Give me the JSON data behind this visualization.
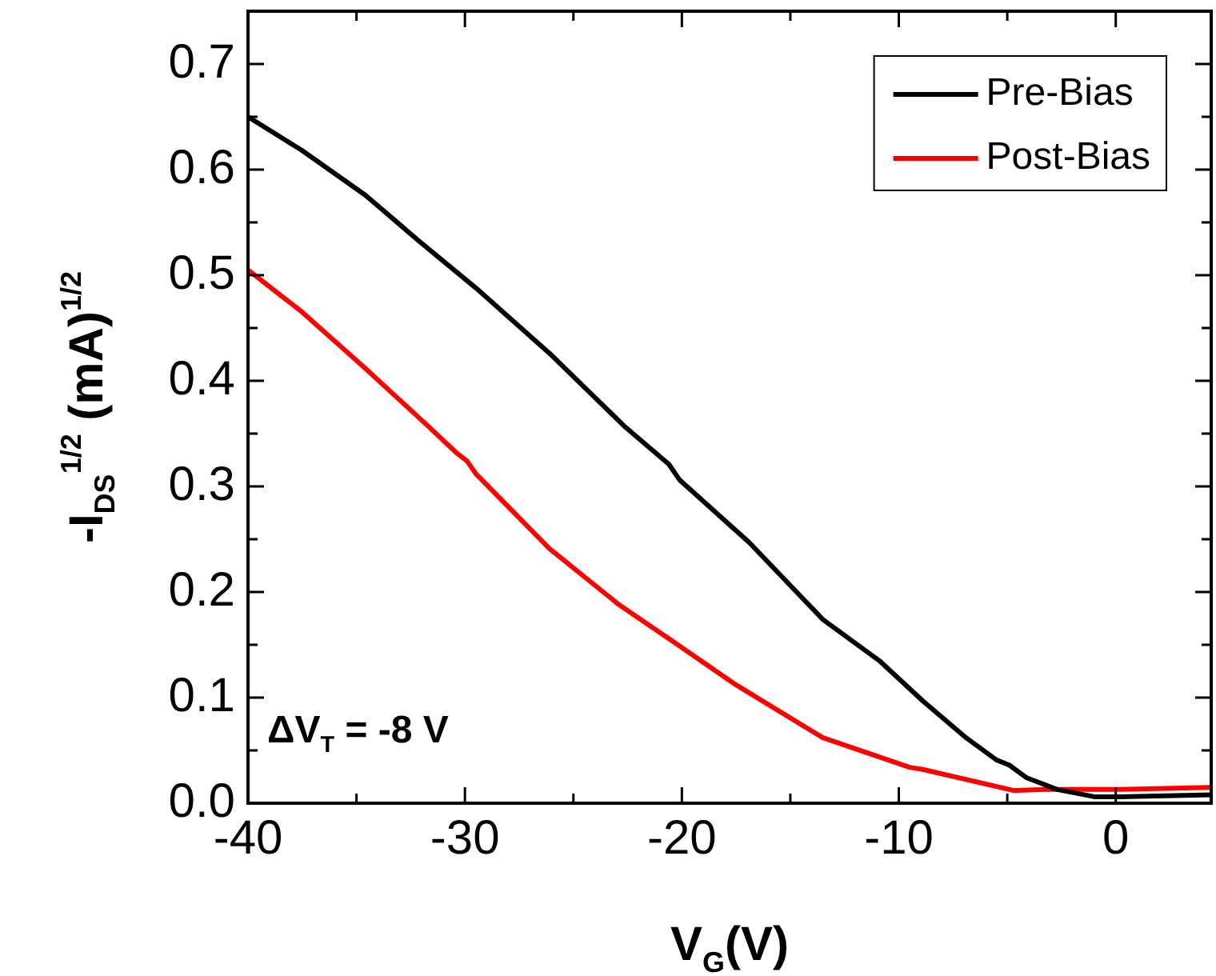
{
  "chart_data": {
    "type": "line",
    "xlabel": "V$_{G}$(V)",
    "ylabel": "-I$_{DS}$$^{1/2}$ (mA)$^{1/2}$",
    "annotations": [
      "ΔV$_{T}$ = -8 V"
    ],
    "xlim": [
      -40,
      4.4
    ],
    "ylim": [
      0,
      0.75
    ],
    "xticks": [
      -40,
      {
        "value": -35,
        "label": null
      },
      -30,
      {
        "value": -25,
        "label": null
      },
      -20,
      {
        "value": -15,
        "label": null
      },
      -10,
      {
        "value": -5,
        "label": null
      },
      0
    ],
    "yticks": [
      {
        "value": 0,
        "label": "0.0"
      },
      {
        "value": 0.05,
        "label": null
      },
      0.1,
      {
        "value": 0.15,
        "label": null
      },
      0.2,
      {
        "value": 0.25,
        "label": null
      },
      0.3,
      {
        "value": 0.35,
        "label": null
      },
      0.4,
      {
        "value": 0.45,
        "label": null
      },
      0.5,
      {
        "value": 0.55,
        "label": null
      },
      0.6,
      {
        "value": 0.65,
        "label": null
      },
      0.7
    ],
    "legend": "top right",
    "series": [
      {
        "name": "Pre-Bias",
        "color": "#000000",
        "x": [
          -40,
          -37.5,
          -34.6,
          -32.1,
          -29.5,
          -26.1,
          -22.6,
          -20.6,
          -20.1,
          -16.9,
          -13.5,
          -10.9,
          -8.9,
          -6.9,
          -5.5,
          -4.9,
          -4.1,
          -2.7,
          -0.95,
          0.2,
          4.4
        ],
        "values": [
          0.65,
          0.618,
          0.576,
          0.532,
          0.488,
          0.426,
          0.356,
          0.321,
          0.306,
          0.247,
          0.174,
          0.135,
          0.097,
          0.062,
          0.041,
          0.036,
          0.024,
          0.013,
          0.006,
          0.006,
          0.008
        ]
      },
      {
        "name": "Post-Bias",
        "color": "#ff0000",
        "x": [
          -40,
          -37.5,
          -34.6,
          -31.8,
          -30.4,
          -29.9,
          -29.5,
          -26.1,
          -22.9,
          -20.4,
          -17.5,
          -13.5,
          -9.5,
          -8.9,
          -4.7,
          -3.2,
          0.2,
          4.4
        ],
        "values": [
          0.505,
          0.465,
          0.412,
          0.359,
          0.332,
          0.324,
          0.312,
          0.241,
          0.188,
          0.153,
          0.112,
          0.062,
          0.034,
          0.032,
          0.012,
          0.013,
          0.013,
          0.015
        ]
      }
    ]
  }
}
